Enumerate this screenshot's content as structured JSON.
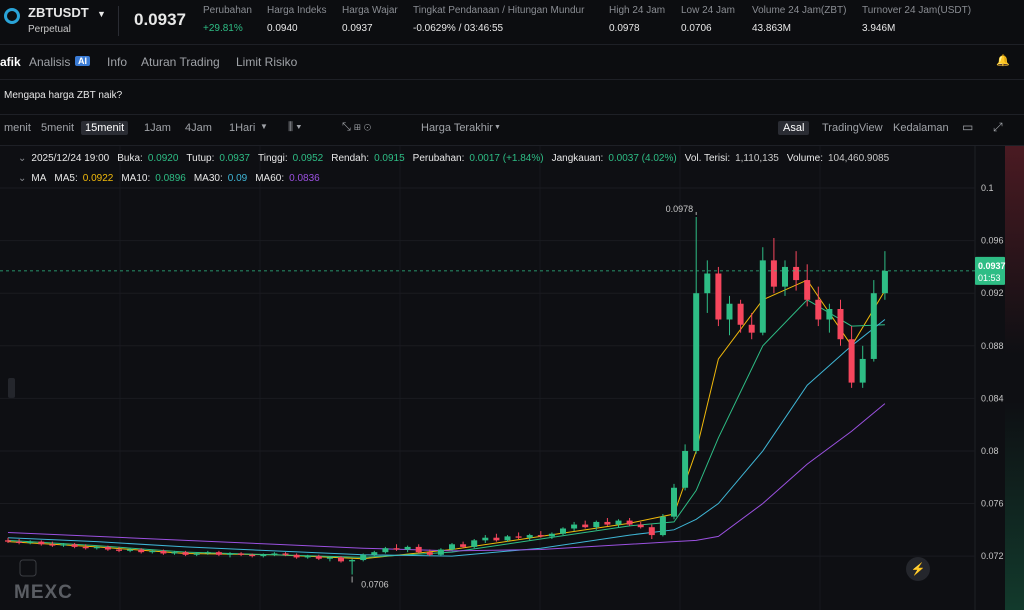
{
  "header": {
    "symbol": "ZBTUSDT",
    "contract": "Perpetual",
    "price": "0.0937",
    "stats": [
      {
        "label": "Perubahan",
        "value": "+29.81%",
        "color": "#2ebd85"
      },
      {
        "label": "Harga Indeks",
        "value": "0.0940",
        "color": "#e8e8e8"
      },
      {
        "label": "Harga Wajar",
        "value": "0.0937",
        "color": "#e8e8e8"
      },
      {
        "label": "Tingkat Pendanaan / Hitungan Mundur",
        "value": "-0.0629% / 03:46:55",
        "color": "#e8e8e8"
      },
      {
        "label": "High 24 Jam",
        "value": "0.0978",
        "color": "#e8e8e8"
      },
      {
        "label": "Low 24 Jam",
        "value": "0.0706",
        "color": "#e8e8e8"
      },
      {
        "label": "Volume 24 Jam(ZBT)",
        "value": "43.863M",
        "color": "#e8e8e8"
      },
      {
        "label": "Turnover 24 Jam(USDT)",
        "value": "3.946M",
        "color": "#e8e8e8"
      }
    ]
  },
  "tabs": [
    "afik",
    "Analisis",
    "Info",
    "Aturan Trading",
    "Limit Risiko"
  ],
  "ai_badge": "AI",
  "banner": "Mengapa harga ZBT naik?",
  "toolbar": {
    "intervals": [
      "menit",
      "5menit",
      "15menit",
      "1Jam",
      "4Jam",
      "1Hari"
    ],
    "active_interval": 2,
    "price_source": "Harga Terakhir",
    "views": [
      "Asal",
      "TradingView",
      "Kedalaman"
    ],
    "active_view": 0
  },
  "ohlc_info": {
    "time": "2025/12/24 19:00",
    "items": [
      {
        "label": "Buka:",
        "value": "0.0920",
        "color": "#2ebd85"
      },
      {
        "label": "Tutup:",
        "value": "0.0937",
        "color": "#2ebd85"
      },
      {
        "label": "Tinggi:",
        "value": "0.0952",
        "color": "#2ebd85"
      },
      {
        "label": "Rendah:",
        "value": "0.0915",
        "color": "#2ebd85"
      },
      {
        "label": "Perubahan:",
        "value": "0.0017 (+1.84%)",
        "color": "#2ebd85"
      },
      {
        "label": "Jangkauan:",
        "value": "0.0037 (4.02%)",
        "color": "#2ebd85"
      },
      {
        "label": "Vol. Terisi:",
        "value": "1,110,135",
        "color": "#c8c8c8"
      },
      {
        "label": "Volume:",
        "value": "104,460.9085",
        "color": "#c8c8c8"
      }
    ]
  },
  "ma_legend": {
    "title": "MA",
    "items": [
      {
        "label": "MA5:",
        "value": "0.0922",
        "color": "#f0b90b"
      },
      {
        "label": "MA10:",
        "value": "0.0896",
        "color": "#2ebd85"
      },
      {
        "label": "MA30:",
        "value": "0.09",
        "color": "#3fb6d6"
      },
      {
        "label": "MA60:",
        "value": "0.0836",
        "color": "#9b51e0"
      }
    ]
  },
  "chart_data": {
    "type": "candlestick",
    "up_color": "#2ebd85",
    "down_color": "#f6465d",
    "open": [
      0.0732,
      0.0731,
      0.073,
      0.0731,
      0.0729,
      0.0728,
      0.0729,
      0.0727,
      0.0726,
      0.0727,
      0.0725,
      0.0724,
      0.0725,
      0.0723,
      0.0724,
      0.0722,
      0.0723,
      0.0721,
      0.0722,
      0.0723,
      0.0721,
      0.0722,
      0.0721,
      0.072,
      0.0721,
      0.0722,
      0.0721,
      0.0719,
      0.072,
      0.0718,
      0.0719,
      0.0716,
      0.0717,
      0.0721,
      0.0723,
      0.0726,
      0.0725,
      0.0727,
      0.0723,
      0.0721,
      0.0725,
      0.0729,
      0.0727,
      0.0732,
      0.0734,
      0.0732,
      0.0735,
      0.0734,
      0.0736,
      0.0735,
      0.0737,
      0.0741,
      0.0744,
      0.0742,
      0.0746,
      0.0744,
      0.0747,
      0.0744,
      0.0742,
      0.0736,
      0.075,
      0.0772,
      0.08,
      0.092,
      0.0935,
      0.09,
      0.0912,
      0.0896,
      0.089,
      0.0945,
      0.0925,
      0.094,
      0.093,
      0.0915,
      0.09,
      0.0908,
      0.0885,
      0.0852,
      0.087,
      0.092
    ],
    "high": [
      0.0734,
      0.0733,
      0.0732,
      0.0732,
      0.0731,
      0.073,
      0.073,
      0.0729,
      0.0728,
      0.0728,
      0.0727,
      0.0726,
      0.0726,
      0.0725,
      0.0725,
      0.0724,
      0.0724,
      0.0723,
      0.0724,
      0.0724,
      0.0723,
      0.0723,
      0.0722,
      0.0722,
      0.0723,
      0.0723,
      0.0722,
      0.0721,
      0.0721,
      0.072,
      0.072,
      0.0718,
      0.0722,
      0.0724,
      0.0727,
      0.0729,
      0.0728,
      0.0729,
      0.0725,
      0.0726,
      0.073,
      0.0731,
      0.0733,
      0.0736,
      0.0737,
      0.0736,
      0.0738,
      0.0737,
      0.0739,
      0.0738,
      0.0742,
      0.0746,
      0.0747,
      0.0747,
      0.0749,
      0.0748,
      0.0749,
      0.0746,
      0.0744,
      0.0752,
      0.0775,
      0.0805,
      0.0978,
      0.0945,
      0.094,
      0.0918,
      0.0915,
      0.0905,
      0.0955,
      0.0962,
      0.0945,
      0.0952,
      0.0942,
      0.0925,
      0.0912,
      0.0915,
      0.0895,
      0.088,
      0.093,
      0.0952
    ],
    "low": [
      0.073,
      0.0729,
      0.0729,
      0.0728,
      0.0727,
      0.0727,
      0.0726,
      0.0725,
      0.0725,
      0.0724,
      0.0723,
      0.0723,
      0.0722,
      0.0722,
      0.0721,
      0.0721,
      0.072,
      0.072,
      0.0721,
      0.072,
      0.0719,
      0.072,
      0.0719,
      0.0719,
      0.072,
      0.072,
      0.0718,
      0.0718,
      0.0717,
      0.0716,
      0.0715,
      0.0706,
      0.0716,
      0.072,
      0.0722,
      0.0724,
      0.0723,
      0.0722,
      0.072,
      0.072,
      0.0724,
      0.0726,
      0.0726,
      0.073,
      0.0731,
      0.0731,
      0.0733,
      0.0732,
      0.0734,
      0.0733,
      0.0736,
      0.0739,
      0.0741,
      0.074,
      0.0743,
      0.0742,
      0.0743,
      0.0741,
      0.0733,
      0.0735,
      0.0748,
      0.077,
      0.0798,
      0.0905,
      0.0895,
      0.0888,
      0.089,
      0.0885,
      0.0888,
      0.092,
      0.0918,
      0.0922,
      0.091,
      0.0895,
      0.089,
      0.088,
      0.0848,
      0.0848,
      0.0868,
      0.0915
    ],
    "close": [
      0.0731,
      0.073,
      0.0731,
      0.0729,
      0.0728,
      0.0729,
      0.0727,
      0.0726,
      0.0727,
      0.0725,
      0.0724,
      0.0725,
      0.0723,
      0.0724,
      0.0722,
      0.0723,
      0.0721,
      0.0722,
      0.0723,
      0.0721,
      0.0722,
      0.0721,
      0.072,
      0.0721,
      0.0722,
      0.0721,
      0.0719,
      0.072,
      0.0718,
      0.0719,
      0.0716,
      0.0717,
      0.0721,
      0.0723,
      0.0726,
      0.0725,
      0.0727,
      0.0723,
      0.0721,
      0.0725,
      0.0729,
      0.0727,
      0.0732,
      0.0734,
      0.0732,
      0.0735,
      0.0734,
      0.0736,
      0.0735,
      0.0737,
      0.0741,
      0.0744,
      0.0742,
      0.0746,
      0.0744,
      0.0747,
      0.0744,
      0.0742,
      0.0736,
      0.075,
      0.0772,
      0.08,
      0.092,
      0.0935,
      0.09,
      0.0912,
      0.0896,
      0.089,
      0.0945,
      0.0925,
      0.094,
      0.093,
      0.0915,
      0.09,
      0.0908,
      0.0885,
      0.0852,
      0.087,
      0.092,
      0.0937
    ],
    "ma_series": [
      {
        "color": "#f0b90b",
        "x": [
          0,
          8,
          16,
          24,
          32,
          40,
          48,
          56,
          60,
          62,
          64,
          68,
          72,
          76,
          79
        ],
        "values": [
          0.0731,
          0.0727,
          0.0722,
          0.0721,
          0.0718,
          0.0725,
          0.0735,
          0.0745,
          0.0752,
          0.08,
          0.087,
          0.0915,
          0.093,
          0.088,
          0.0922
        ]
      },
      {
        "color": "#2ebd85",
        "x": [
          0,
          8,
          16,
          24,
          32,
          40,
          48,
          56,
          60,
          62,
          64,
          68,
          72,
          76,
          79
        ],
        "values": [
          0.0732,
          0.0728,
          0.0723,
          0.0721,
          0.0719,
          0.0723,
          0.0733,
          0.0743,
          0.0746,
          0.077,
          0.081,
          0.088,
          0.0915,
          0.0895,
          0.0896
        ]
      },
      {
        "color": "#3fb6d6",
        "x": [
          0,
          8,
          16,
          24,
          32,
          40,
          48,
          56,
          60,
          62,
          64,
          68,
          72,
          76,
          79
        ],
        "values": [
          0.0734,
          0.0731,
          0.0727,
          0.0724,
          0.0721,
          0.072,
          0.0726,
          0.0736,
          0.074,
          0.0748,
          0.076,
          0.08,
          0.085,
          0.088,
          0.09
        ]
      },
      {
        "color": "#9b51e0",
        "x": [
          0,
          8,
          16,
          24,
          32,
          40,
          48,
          56,
          60,
          62,
          64,
          68,
          72,
          76,
          79
        ],
        "values": [
          0.0738,
          0.0735,
          0.0732,
          0.0729,
          0.0726,
          0.0724,
          0.0725,
          0.0729,
          0.0731,
          0.0732,
          0.0735,
          0.076,
          0.079,
          0.0815,
          0.0836
        ]
      }
    ],
    "high_marker": {
      "index": 62
    },
    "low_marker": {
      "index": 31
    },
    "last_price": 0.0937,
    "countdown": "01:53",
    "ylim": [
      0.0679,
      0.1032
    ],
    "yticks": [
      0.1,
      0.096,
      0.092,
      0.088,
      0.084,
      0.08,
      0.076,
      0.072
    ]
  },
  "logo": "MEXC"
}
